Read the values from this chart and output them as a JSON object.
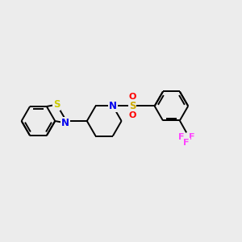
{
  "bg": "#ececec",
  "bond_color": "#000000",
  "S_btz_color": "#cccc00",
  "N_color": "#0000ee",
  "O_color": "#ff0000",
  "F_color": "#ff44ff",
  "S_sulfonyl_color": "#ccaa00",
  "bond_lw": 1.4,
  "dbl_lw": 1.4,
  "figsize": [
    3.0,
    3.0
  ],
  "dpi": 100,
  "xlim": [
    0,
    10
  ],
  "ylim": [
    1.5,
    8.5
  ]
}
